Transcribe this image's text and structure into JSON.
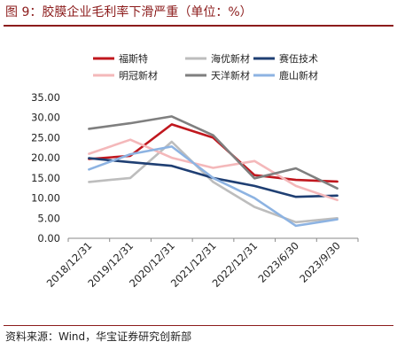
{
  "figure": {
    "title": "图 9：胶膜企业毛利率下滑严重（单位：%）",
    "source": "资料来源：Wind，华宝证券研究创新部"
  },
  "chart_data": {
    "type": "line",
    "categories": [
      "2018/12/31",
      "2019/12/31",
      "2020/12/31",
      "2021/12/31",
      "2022/12/31",
      "2023/6/30",
      "2023/9/30"
    ],
    "ylim": [
      0,
      35
    ],
    "yticks": [
      "0.00",
      "5.00",
      "10.00",
      "15.00",
      "20.00",
      "25.00",
      "30.00",
      "35.00"
    ],
    "grid": false,
    "legend_position": "top",
    "series": [
      {
        "name": "福斯特",
        "color": "#c0171e",
        "values": [
          19.7,
          20.5,
          28.3,
          25.0,
          15.7,
          14.5,
          14.1
        ]
      },
      {
        "name": "海优新材",
        "color": "#bdbdbd",
        "values": [
          14.0,
          15.0,
          24.0,
          14.0,
          7.8,
          4.0,
          5.0
        ]
      },
      {
        "name": "赛伍技术",
        "color": "#1f3f73",
        "values": [
          19.9,
          18.9,
          18.0,
          15.0,
          13.0,
          10.3,
          10.6
        ]
      },
      {
        "name": "明冠新材",
        "color": "#f4b8ba",
        "values": [
          21.0,
          24.5,
          20.0,
          17.5,
          19.2,
          13.0,
          9.5
        ]
      },
      {
        "name": "天洋新材",
        "color": "#7f7f7f",
        "values": [
          27.2,
          28.6,
          30.3,
          25.6,
          14.9,
          17.4,
          12.4
        ]
      },
      {
        "name": "鹿山新材",
        "color": "#8db3e2",
        "values": [
          17.1,
          20.9,
          22.8,
          15.0,
          10.0,
          3.1,
          4.7
        ]
      }
    ]
  }
}
